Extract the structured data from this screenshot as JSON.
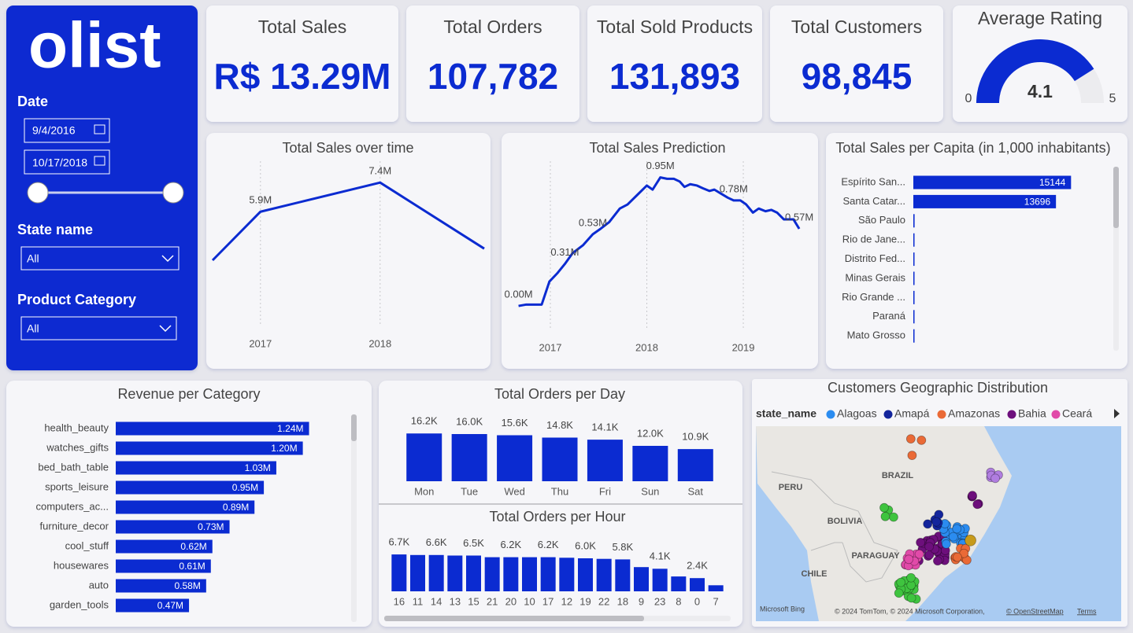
{
  "sidebar": {
    "logo": "olist",
    "date_label": "Date",
    "date_start": "9/4/2016",
    "date_end": "10/17/2018",
    "state_label": "State name",
    "state_value": "All",
    "category_label": "Product Category",
    "category_value": "All"
  },
  "kpis": [
    {
      "title": "Total Sales",
      "value": "R$ 13.29M"
    },
    {
      "title": "Total Orders",
      "value": "107,782"
    },
    {
      "title": "Total Sold Products",
      "value": "131,893"
    },
    {
      "title": "Total Customers",
      "value": "98,845"
    }
  ],
  "chart_data": [
    {
      "type": "gauge",
      "title": "Average Rating",
      "value": 4.1,
      "ylim": [
        0,
        5
      ],
      "color": "#0b2bd1"
    },
    {
      "type": "line",
      "title": "Total Sales over time",
      "x": [
        2016.6,
        2017,
        2018,
        2018.87
      ],
      "values": [
        3.4,
        5.9,
        7.4,
        4.0
      ],
      "value_labels": [
        null,
        "5.9M",
        "7.4M",
        null
      ],
      "xlim": [
        2016.6,
        2018.87
      ],
      "xticks": [
        2017,
        2018
      ],
      "ylim": [
        0,
        8.5
      ],
      "color": "#0b2bd1"
    },
    {
      "type": "line",
      "title": "Total Sales Prediction",
      "x": [
        2016.67,
        2016.75,
        2016.91,
        2016.99,
        2017.07,
        2017.15,
        2017.23,
        2017.34,
        2017.44,
        2017.52,
        2017.61,
        2017.72,
        2017.8,
        2017.9,
        2018.0,
        2018.06,
        2018.14,
        2018.21,
        2018.28,
        2018.34,
        2018.39,
        2018.45,
        2018.52,
        2018.58,
        2018.65,
        2018.7,
        2018.77,
        2018.84,
        2018.9,
        2018.97,
        2019.03,
        2019.1,
        2019.16,
        2019.23,
        2019.29,
        2019.35,
        2019.42,
        2019.48,
        2019.52,
        2019.58
      ],
      "values": [
        0.0,
        0.01,
        0.01,
        0.18,
        0.24,
        0.31,
        0.39,
        0.45,
        0.53,
        0.57,
        0.62,
        0.72,
        0.75,
        0.82,
        0.89,
        0.86,
        0.95,
        0.94,
        0.94,
        0.92,
        0.88,
        0.9,
        0.89,
        0.87,
        0.85,
        0.86,
        0.83,
        0.8,
        0.78,
        0.78,
        0.75,
        0.69,
        0.72,
        0.7,
        0.71,
        0.69,
        0.64,
        0.64,
        0.64,
        0.57
      ],
      "value_labels": [
        "0.00M",
        null,
        null,
        null,
        null,
        "0.31M",
        null,
        null,
        "0.53M",
        null,
        null,
        null,
        null,
        null,
        null,
        null,
        "0.95M",
        null,
        null,
        null,
        null,
        null,
        null,
        null,
        null,
        null,
        null,
        null,
        "0.78M",
        null,
        null,
        null,
        null,
        null,
        null,
        null,
        null,
        null,
        null,
        "0.57M"
      ],
      "xlim": [
        2016.6,
        2019.62
      ],
      "xticks": [
        2017,
        2018,
        2019
      ],
      "ylim": [
        -0.18,
        1.07
      ],
      "color": "#0b2bd1"
    },
    {
      "type": "hbar",
      "title": "Total Sales per Capita (in 1,000 inhabitants)",
      "categories": [
        "Espírito San...",
        "Santa Catar...",
        "São Paulo",
        "Rio de Jane...",
        "Distrito Fed...",
        "Minas Gerais",
        "Rio Grande ...",
        "Paraná",
        "Mato Grosso"
      ],
      "values": [
        15144,
        13696,
        120,
        110,
        100,
        90,
        85,
        80,
        75
      ],
      "value_labels": [
        "15144",
        "13696",
        null,
        null,
        null,
        null,
        null,
        null,
        null
      ],
      "xlim": [
        0,
        18900
      ],
      "color": "#0b2bd1"
    },
    {
      "type": "hbar",
      "title": "Revenue per Category",
      "categories": [
        "health_beauty",
        "watches_gifts",
        "bed_bath_table",
        "sports_leisure",
        "computers_ac...",
        "furniture_decor",
        "cool_stuff",
        "housewares",
        "auto",
        "garden_tools"
      ],
      "values": [
        1.24,
        1.2,
        1.03,
        0.95,
        0.89,
        0.73,
        0.62,
        0.61,
        0.58,
        0.47
      ],
      "value_labels": [
        "1.24M",
        "1.20M",
        "1.03M",
        "0.95M",
        "0.89M",
        "0.73M",
        "0.62M",
        "0.61M",
        "0.58M",
        "0.47M"
      ],
      "xlim": [
        0,
        1.5
      ],
      "color": "#0b2bd1"
    },
    {
      "type": "bar",
      "title": "Total Orders per Day",
      "categories": [
        "Mon",
        "Tue",
        "Wed",
        "Thu",
        "Fri",
        "Sun",
        "Sat"
      ],
      "values": [
        16.2,
        16.0,
        15.6,
        14.8,
        14.1,
        12.0,
        10.9
      ],
      "value_labels": [
        "16.2K",
        "16.0K",
        "15.6K",
        "14.8K",
        "14.1K",
        "12.0K",
        "10.9K"
      ],
      "ylim": [
        0,
        20
      ],
      "color": "#0b2bd1"
    },
    {
      "type": "bar",
      "title": "Total Orders per Hour",
      "categories": [
        "16",
        "11",
        "14",
        "13",
        "15",
        "21",
        "20",
        "10",
        "17",
        "12",
        "19",
        "22",
        "18",
        "9",
        "23",
        "8",
        "0",
        "7"
      ],
      "values": [
        6.7,
        6.6,
        6.6,
        6.5,
        6.5,
        6.2,
        6.2,
        6.2,
        6.2,
        6.1,
        6.0,
        5.9,
        5.8,
        4.4,
        4.1,
        2.7,
        2.4,
        1.1
      ],
      "value_labels": [
        "6.7K",
        null,
        "6.6K",
        null,
        "6.5K",
        null,
        "6.2K",
        null,
        "6.2K",
        null,
        "6.0K",
        null,
        "5.8K",
        null,
        "4.1K",
        null,
        "2.4K",
        null
      ],
      "ylim": [
        0,
        8
      ],
      "color": "#0b2bd1"
    }
  ],
  "map": {
    "title": "Customers Geographic Distribution",
    "legend_title": "state_name",
    "legend": [
      {
        "name": "Alagoas",
        "color": "#2b8cf0"
      },
      {
        "name": "Amapá",
        "color": "#13259c"
      },
      {
        "name": "Amazonas",
        "color": "#ea6a36"
      },
      {
        "name": "Bahia",
        "color": "#6d0f7c"
      },
      {
        "name": "Ceará",
        "color": "#e14aa9"
      }
    ],
    "labels": [
      "BRAZIL",
      "PERU",
      "BOLIVIA",
      "PARAGUAY",
      "CHILE"
    ],
    "logo": "Microsoft Bing",
    "attribution": "© 2024 TomTom, © 2024 Microsoft Corporation,",
    "osm": "© OpenStreetMap",
    "terms": "Terms"
  }
}
